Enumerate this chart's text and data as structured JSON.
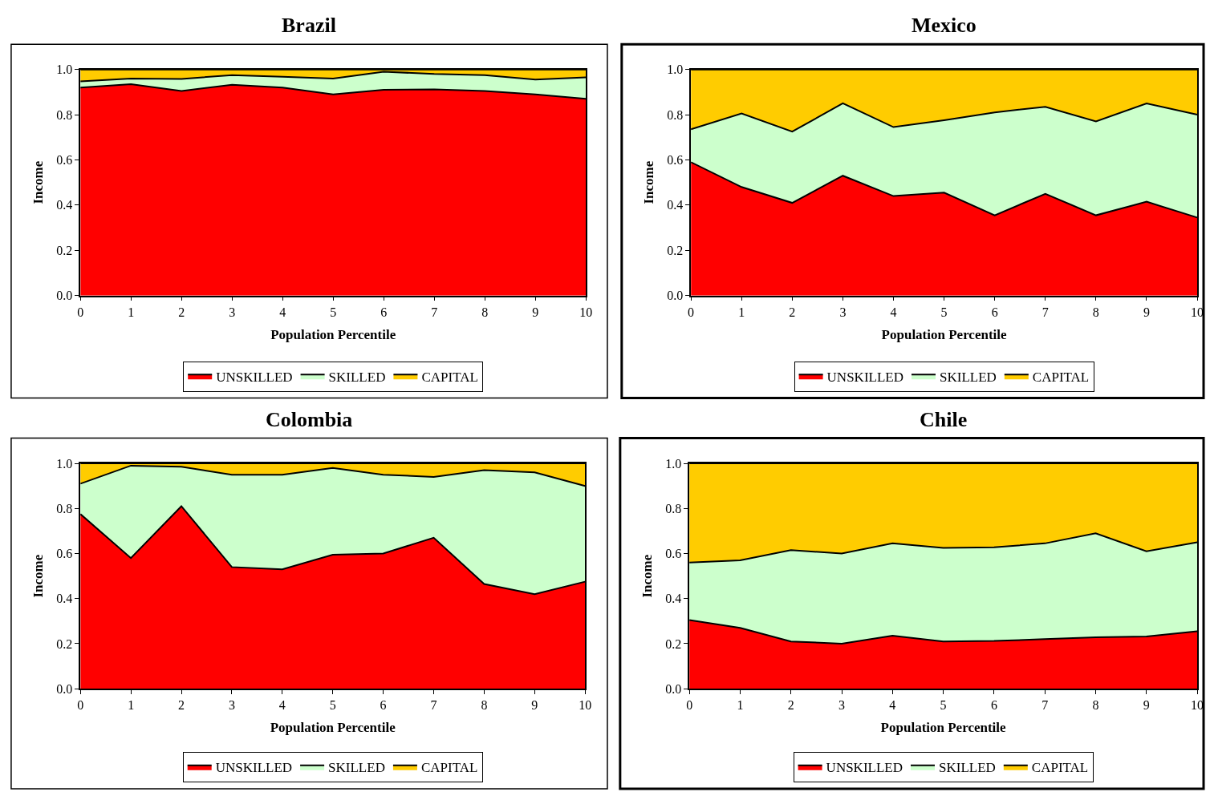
{
  "chart_data": [
    {
      "type": "area",
      "title": "Brazil",
      "xlabel": "Population Percentile",
      "ylabel": "Income",
      "stacked": true,
      "legend": "bottom",
      "x": [
        0,
        1,
        2,
        3,
        4,
        5,
        6,
        7,
        8,
        9,
        10
      ],
      "xlim": [
        0,
        10
      ],
      "xticks": [
        0,
        1,
        2,
        3,
        4,
        5,
        6,
        7,
        8,
        9,
        10
      ],
      "ylim": [
        0,
        1
      ],
      "yticks": [
        {
          "value": 0,
          "label": "0.0"
        },
        {
          "value": 0.2,
          "label": "0.2"
        },
        {
          "value": 0.4,
          "label": "0.4"
        },
        {
          "value": 0.6,
          "label": "0.6"
        },
        {
          "value": 0.8,
          "label": "0.8"
        },
        {
          "value": 1,
          "label": "1.0"
        }
      ],
      "series": [
        {
          "name": "UNSKILLED",
          "color": "#ff0000",
          "values": [
            0.92,
            0.935,
            0.905,
            0.932,
            0.92,
            0.89,
            0.91,
            0.912,
            0.905,
            0.89,
            0.87
          ]
        },
        {
          "name": "SKILLED",
          "color": "#ccffcc",
          "values": [
            0.027,
            0.025,
            0.053,
            0.043,
            0.048,
            0.07,
            0.08,
            0.068,
            0.07,
            0.065,
            0.095
          ]
        },
        {
          "name": "CAPITAL",
          "color": "#ffcc00",
          "values": [
            0.053,
            0.04,
            0.042,
            0.025,
            0.032,
            0.04,
            0.01,
            0.02,
            0.025,
            0.045,
            0.035
          ]
        }
      ]
    },
    {
      "type": "area",
      "title": "Mexico",
      "xlabel": "Population Percentile",
      "ylabel": "Income",
      "stacked": true,
      "legend": "bottom",
      "x": [
        0,
        1,
        2,
        3,
        4,
        5,
        6,
        7,
        8,
        9,
        10
      ],
      "xlim": [
        0,
        10
      ],
      "xticks": [
        0,
        1,
        2,
        3,
        4,
        5,
        6,
        7,
        8,
        9,
        10
      ],
      "ylim": [
        0,
        1
      ],
      "yticks": [
        {
          "value": 0,
          "label": "0.0"
        },
        {
          "value": 0.2,
          "label": "0.2"
        },
        {
          "value": 0.4,
          "label": "0.4"
        },
        {
          "value": 0.6,
          "label": "0.6"
        },
        {
          "value": 0.8,
          "label": "0.8"
        },
        {
          "value": 1,
          "label": "1.0"
        }
      ],
      "series": [
        {
          "name": "UNSKILLED",
          "color": "#ff0000",
          "values": [
            0.59,
            0.48,
            0.41,
            0.53,
            0.44,
            0.455,
            0.355,
            0.45,
            0.355,
            0.415,
            0.345
          ]
        },
        {
          "name": "SKILLED",
          "color": "#ccffcc",
          "values": [
            0.145,
            0.325,
            0.315,
            0.32,
            0.305,
            0.32,
            0.455,
            0.385,
            0.415,
            0.435,
            0.455
          ]
        },
        {
          "name": "CAPITAL",
          "color": "#ffcc00",
          "values": [
            0.265,
            0.195,
            0.275,
            0.15,
            0.255,
            0.225,
            0.19,
            0.165,
            0.23,
            0.15,
            0.2
          ]
        }
      ]
    },
    {
      "type": "area",
      "title": "Colombia",
      "xlabel": "Population Percentile",
      "ylabel": "Income",
      "stacked": true,
      "legend": "bottom",
      "x": [
        0,
        1,
        2,
        3,
        4,
        5,
        6,
        7,
        8,
        9,
        10
      ],
      "xlim": [
        0,
        10
      ],
      "xticks": [
        0,
        1,
        2,
        3,
        4,
        5,
        6,
        7,
        8,
        9,
        10
      ],
      "ylim": [
        0,
        1
      ],
      "yticks": [
        {
          "value": 0,
          "label": "0.0"
        },
        {
          "value": 0.2,
          "label": "0.2"
        },
        {
          "value": 0.4,
          "label": "0.4"
        },
        {
          "value": 0.6,
          "label": "0.6"
        },
        {
          "value": 0.8,
          "label": "0.8"
        },
        {
          "value": 1,
          "label": "1.0"
        }
      ],
      "series": [
        {
          "name": "UNSKILLED",
          "color": "#ff0000",
          "values": [
            0.775,
            0.58,
            0.81,
            0.54,
            0.53,
            0.595,
            0.6,
            0.67,
            0.465,
            0.42,
            0.475
          ]
        },
        {
          "name": "SKILLED",
          "color": "#ccffcc",
          "values": [
            0.135,
            0.41,
            0.175,
            0.41,
            0.42,
            0.385,
            0.35,
            0.27,
            0.505,
            0.54,
            0.425
          ]
        },
        {
          "name": "CAPITAL",
          "color": "#ffcc00",
          "values": [
            0.09,
            0.01,
            0.015,
            0.05,
            0.05,
            0.02,
            0.05,
            0.06,
            0.03,
            0.04,
            0.1
          ]
        }
      ]
    },
    {
      "type": "area",
      "title": "Chile",
      "xlabel": "Population Percentile",
      "ylabel": "Income",
      "stacked": true,
      "legend": "bottom",
      "x": [
        0,
        1,
        2,
        3,
        4,
        5,
        6,
        7,
        8,
        9,
        10
      ],
      "xlim": [
        0,
        10
      ],
      "xticks": [
        0,
        1,
        2,
        3,
        4,
        5,
        6,
        7,
        8,
        9,
        10
      ],
      "ylim": [
        0,
        1
      ],
      "yticks": [
        {
          "value": 0,
          "label": "0.0"
        },
        {
          "value": 0.2,
          "label": "0.2"
        },
        {
          "value": 0.4,
          "label": "0.4"
        },
        {
          "value": 0.6,
          "label": "0.6"
        },
        {
          "value": 0.8,
          "label": "0.8"
        },
        {
          "value": 1,
          "label": "1.0"
        }
      ],
      "series": [
        {
          "name": "UNSKILLED",
          "color": "#ff0000",
          "values": [
            0.305,
            0.27,
            0.21,
            0.2,
            0.235,
            0.21,
            0.212,
            0.22,
            0.228,
            0.232,
            0.255
          ]
        },
        {
          "name": "SKILLED",
          "color": "#ccffcc",
          "values": [
            0.255,
            0.3,
            0.405,
            0.4,
            0.41,
            0.415,
            0.416,
            0.425,
            0.462,
            0.378,
            0.395
          ]
        },
        {
          "name": "CAPITAL",
          "color": "#ffcc00",
          "values": [
            0.44,
            0.43,
            0.385,
            0.4,
            0.355,
            0.375,
            0.372,
            0.355,
            0.31,
            0.39,
            0.35
          ]
        }
      ]
    }
  ]
}
